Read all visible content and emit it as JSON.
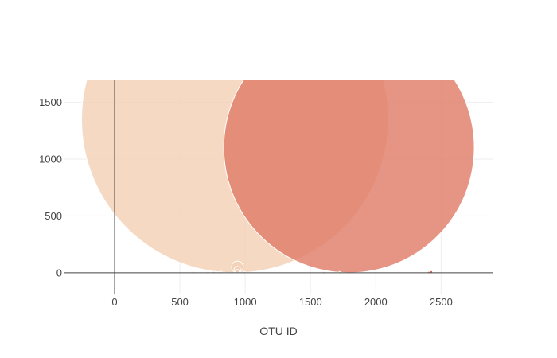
{
  "chart_data": {
    "type": "scatter",
    "subtype": "bubble",
    "title": "",
    "xlabel": "OTU ID",
    "ylabel": "",
    "xlim": [
      -390,
      2900
    ],
    "ylim": [
      -190,
      1700
    ],
    "x_ticks": [
      0,
      500,
      1000,
      1500,
      2000,
      2500
    ],
    "y_ticks": [
      0,
      500,
      1000,
      1500
    ],
    "grid": true,
    "legend": "none",
    "zero_lines": true,
    "series": [
      {
        "points": [
          {
            "x": 922,
            "y": 1350,
            "size": 1350,
            "color": "#f2d0b4",
            "opacity": 0.8
          },
          {
            "x": 1795,
            "y": 1102,
            "size": 1102,
            "color": "#e07a66",
            "opacity": 0.8
          },
          {
            "x": 940,
            "y": 51,
            "size": 51,
            "color": "#f2d0b4",
            "opacity": 0.8
          },
          {
            "x": 940,
            "y": 28,
            "size": 28,
            "color": "#f2d0b4",
            "opacity": 0.8
          },
          {
            "x": 940,
            "y": 15,
            "size": 15,
            "color": "#f2d0b4",
            "opacity": 0.8
          },
          {
            "x": 2425,
            "y": 8,
            "size": 8,
            "color": "#c83a2e",
            "opacity": 0.85
          },
          {
            "x": 2405,
            "y": 2,
            "size": 2,
            "color": "#e07a66",
            "opacity": 0.8
          },
          {
            "x": 810,
            "y": 4,
            "size": 4,
            "color": "#f2d0b4",
            "opacity": 0.8
          },
          {
            "x": 760,
            "y": 3,
            "size": 3,
            "color": "#f2d0b4",
            "opacity": 0.8
          },
          {
            "x": 715,
            "y": 2,
            "size": 2,
            "color": "#f2d0b4",
            "opacity": 0.8
          },
          {
            "x": 605,
            "y": 1,
            "size": 1,
            "color": "#f2d0b4",
            "opacity": 0.8
          },
          {
            "x": 995,
            "y": 1,
            "size": 1,
            "color": "#f2d0b4",
            "opacity": 0.8
          },
          {
            "x": 1600,
            "y": 1,
            "size": 1,
            "color": "#f2d0b4",
            "opacity": 0.8
          },
          {
            "x": 1725,
            "y": 1,
            "size": 1,
            "color": "#f2d0b4",
            "opacity": 0.8
          }
        ]
      }
    ]
  }
}
